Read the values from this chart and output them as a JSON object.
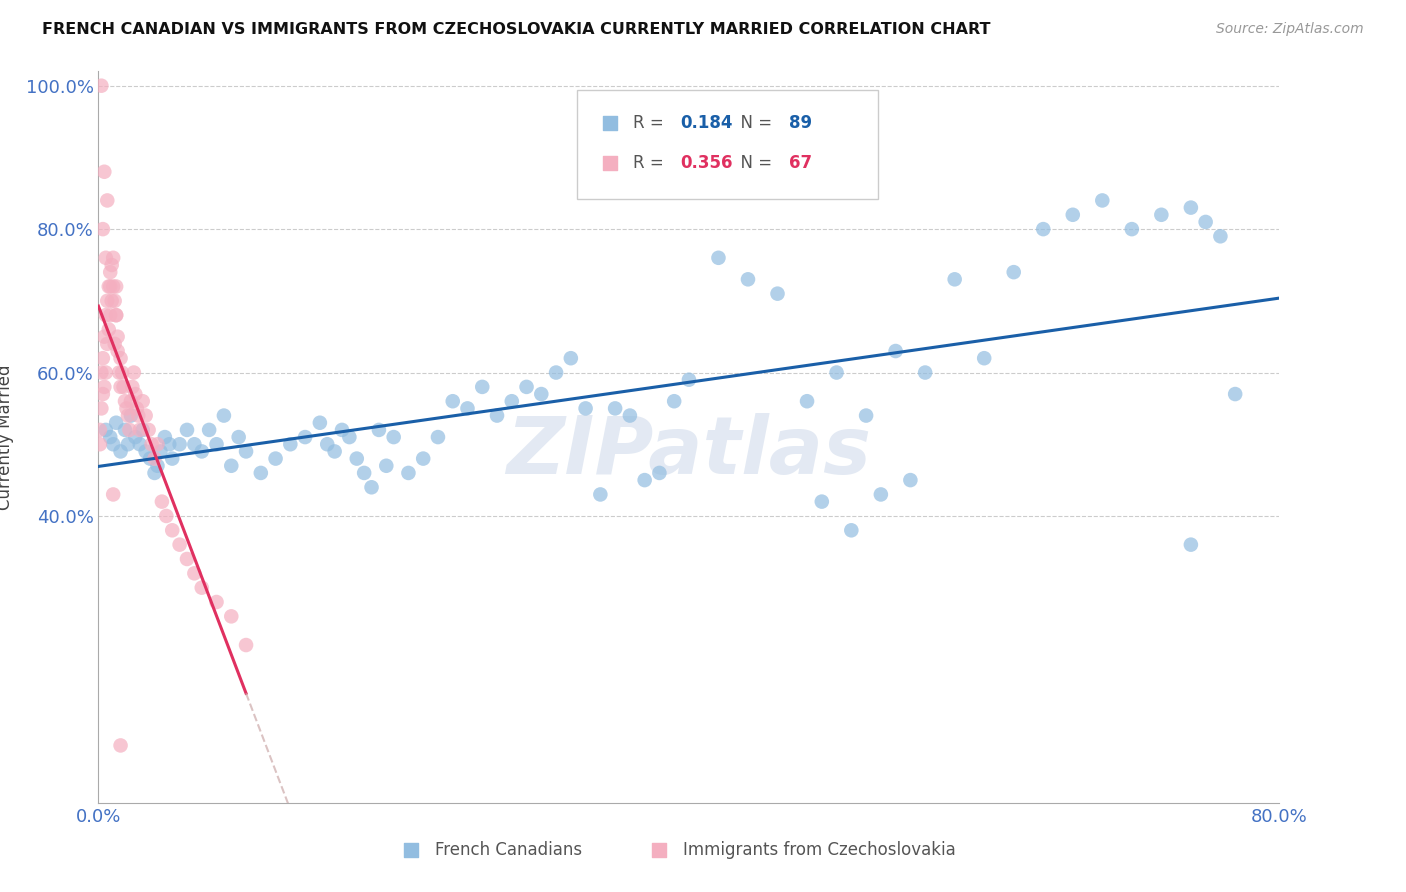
{
  "title": "FRENCH CANADIAN VS IMMIGRANTS FROM CZECHOSLOVAKIA CURRENTLY MARRIED CORRELATION CHART",
  "source": "Source: ZipAtlas.com",
  "ylabel": "Currently Married",
  "x_min": 0.0,
  "x_max": 0.8,
  "y_min": 0.0,
  "y_max": 1.02,
  "y_ticks": [
    0.4,
    0.6,
    0.8,
    1.0
  ],
  "y_tick_labels": [
    "40.0%",
    "60.0%",
    "80.0%",
    "100.0%"
  ],
  "x_ticks": [
    0.0,
    0.1,
    0.2,
    0.3,
    0.4,
    0.5,
    0.6,
    0.7,
    0.8
  ],
  "x_tick_labels": [
    "0.0%",
    "",
    "",
    "",
    "",
    "",
    "",
    "",
    "80.0%"
  ],
  "blue_R": 0.184,
  "blue_N": 89,
  "pink_R": 0.356,
  "pink_N": 67,
  "blue_color": "#92bde0",
  "pink_color": "#f4afc0",
  "blue_line_color": "#1a5fa8",
  "pink_line_color": "#e03060",
  "blue_label": "French Canadians",
  "pink_label": "Immigrants from Czechoslovakia",
  "tick_color": "#4472c4",
  "grid_color": "#cccccc",
  "watermark": "ZIPatlas",
  "blue_x": [
    0.005,
    0.008,
    0.01,
    0.012,
    0.015,
    0.018,
    0.02,
    0.022,
    0.025,
    0.028,
    0.03,
    0.032,
    0.035,
    0.038,
    0.04,
    0.042,
    0.045,
    0.048,
    0.05,
    0.055,
    0.06,
    0.065,
    0.07,
    0.075,
    0.08,
    0.085,
    0.09,
    0.095,
    0.1,
    0.11,
    0.12,
    0.13,
    0.14,
    0.15,
    0.155,
    0.16,
    0.165,
    0.17,
    0.175,
    0.18,
    0.185,
    0.19,
    0.195,
    0.2,
    0.21,
    0.22,
    0.23,
    0.24,
    0.25,
    0.26,
    0.27,
    0.28,
    0.29,
    0.3,
    0.31,
    0.32,
    0.33,
    0.34,
    0.35,
    0.36,
    0.37,
    0.38,
    0.39,
    0.4,
    0.42,
    0.44,
    0.46,
    0.48,
    0.5,
    0.52,
    0.54,
    0.56,
    0.58,
    0.6,
    0.62,
    0.64,
    0.66,
    0.68,
    0.7,
    0.72,
    0.74,
    0.75,
    0.76,
    0.77,
    0.74,
    0.49,
    0.51,
    0.53,
    0.55
  ],
  "blue_y": [
    0.52,
    0.51,
    0.5,
    0.53,
    0.49,
    0.52,
    0.5,
    0.54,
    0.51,
    0.5,
    0.52,
    0.49,
    0.48,
    0.46,
    0.47,
    0.49,
    0.51,
    0.5,
    0.48,
    0.5,
    0.52,
    0.5,
    0.49,
    0.52,
    0.5,
    0.54,
    0.47,
    0.51,
    0.49,
    0.46,
    0.48,
    0.5,
    0.51,
    0.53,
    0.5,
    0.49,
    0.52,
    0.51,
    0.48,
    0.46,
    0.44,
    0.52,
    0.47,
    0.51,
    0.46,
    0.48,
    0.51,
    0.56,
    0.55,
    0.58,
    0.54,
    0.56,
    0.58,
    0.57,
    0.6,
    0.62,
    0.55,
    0.43,
    0.55,
    0.54,
    0.45,
    0.46,
    0.56,
    0.59,
    0.76,
    0.73,
    0.71,
    0.56,
    0.6,
    0.54,
    0.63,
    0.6,
    0.73,
    0.62,
    0.74,
    0.8,
    0.82,
    0.84,
    0.8,
    0.82,
    0.83,
    0.81,
    0.79,
    0.57,
    0.36,
    0.42,
    0.38,
    0.43,
    0.45
  ],
  "pink_x": [
    0.001,
    0.001,
    0.002,
    0.002,
    0.003,
    0.003,
    0.004,
    0.004,
    0.005,
    0.005,
    0.006,
    0.006,
    0.007,
    0.007,
    0.008,
    0.008,
    0.009,
    0.009,
    0.01,
    0.01,
    0.011,
    0.011,
    0.012,
    0.012,
    0.013,
    0.013,
    0.014,
    0.015,
    0.015,
    0.016,
    0.017,
    0.018,
    0.019,
    0.02,
    0.021,
    0.022,
    0.023,
    0.024,
    0.025,
    0.026,
    0.027,
    0.028,
    0.03,
    0.032,
    0.034,
    0.036,
    0.038,
    0.04,
    0.043,
    0.046,
    0.05,
    0.055,
    0.06,
    0.065,
    0.07,
    0.08,
    0.09,
    0.1,
    0.003,
    0.005,
    0.008,
    0.012,
    0.002,
    0.004,
    0.006,
    0.01,
    0.015
  ],
  "pink_y": [
    0.52,
    0.5,
    0.55,
    0.6,
    0.57,
    0.62,
    0.58,
    0.65,
    0.6,
    0.68,
    0.64,
    0.7,
    0.66,
    0.72,
    0.68,
    0.74,
    0.7,
    0.75,
    0.72,
    0.76,
    0.64,
    0.7,
    0.68,
    0.72,
    0.65,
    0.63,
    0.6,
    0.62,
    0.58,
    0.6,
    0.58,
    0.56,
    0.55,
    0.54,
    0.52,
    0.56,
    0.58,
    0.6,
    0.57,
    0.55,
    0.54,
    0.52,
    0.56,
    0.54,
    0.52,
    0.5,
    0.48,
    0.5,
    0.42,
    0.4,
    0.38,
    0.36,
    0.34,
    0.32,
    0.3,
    0.28,
    0.26,
    0.22,
    0.8,
    0.76,
    0.72,
    0.68,
    1.0,
    0.88,
    0.84,
    0.43,
    0.08
  ]
}
